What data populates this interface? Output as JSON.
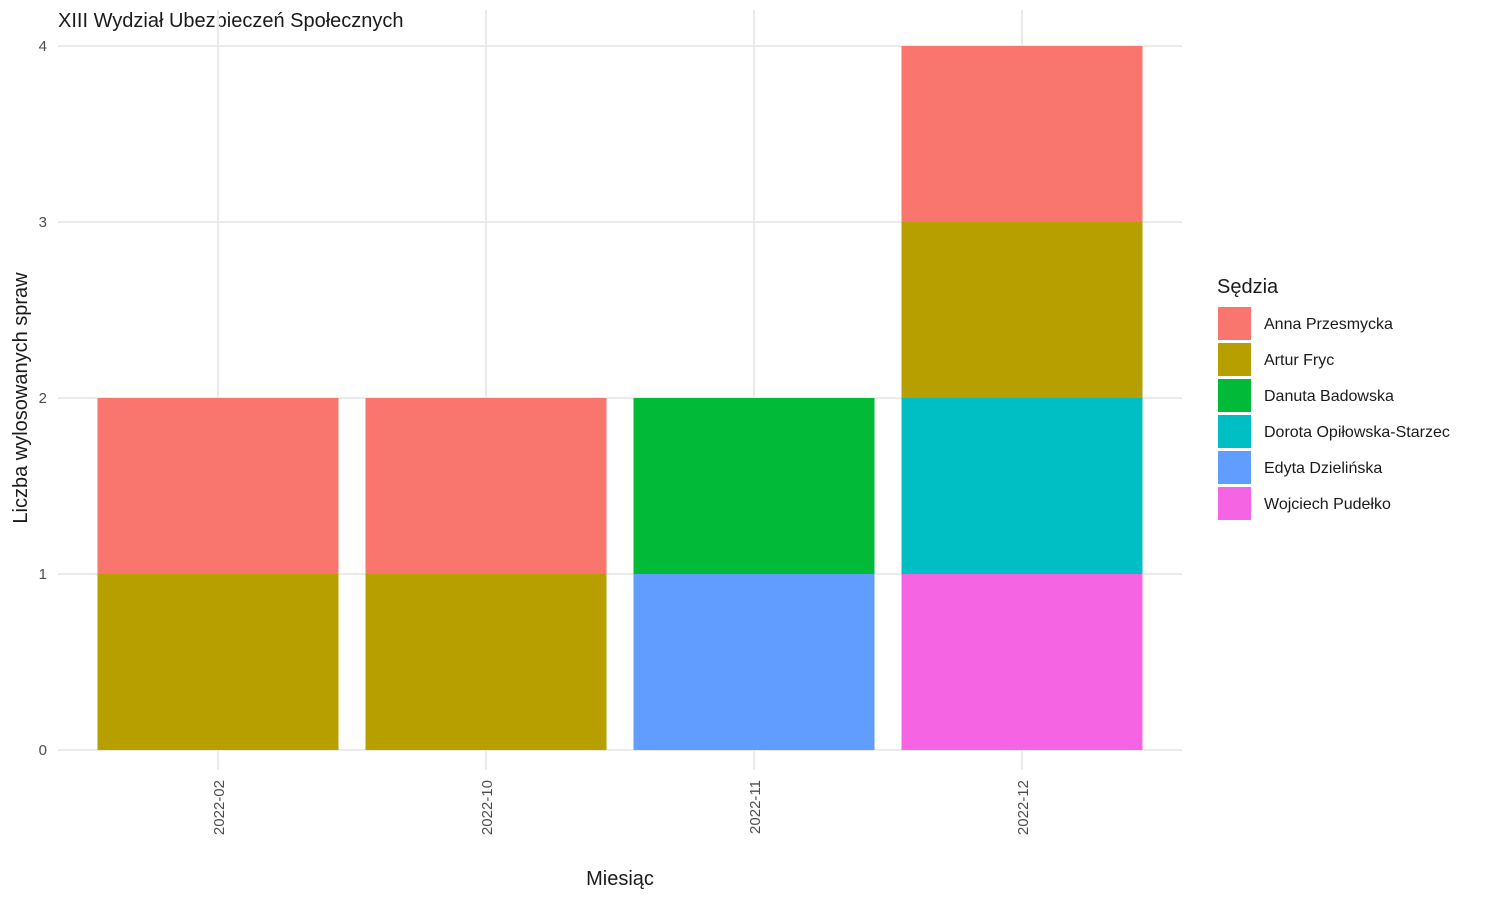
{
  "chart_data": {
    "type": "bar",
    "stacked": true,
    "title": "XIII Wydział Ubezpieczeń Społecznych",
    "xlabel": "Miesiąc",
    "ylabel": "Liczba wylosowanych spraw",
    "ylim": [
      0,
      4
    ],
    "yticks": [
      0,
      1,
      2,
      3,
      4
    ],
    "categories": [
      "2022-02",
      "2022-10",
      "2022-11",
      "2022-12"
    ],
    "legend": {
      "title": "Sędzia",
      "position": "right"
    },
    "grid": true,
    "series": [
      {
        "name": "Wojciech Pudełko",
        "color": "#F564E3",
        "values": [
          0,
          0,
          0,
          1
        ]
      },
      {
        "name": "Edyta Dzielińska",
        "color": "#619CFF",
        "values": [
          0,
          0,
          1,
          0
        ]
      },
      {
        "name": "Dorota Opiłowska-Starzec",
        "color": "#00BFC4",
        "values": [
          0,
          0,
          0,
          1
        ]
      },
      {
        "name": "Danuta Badowska",
        "color": "#00BA38",
        "values": [
          0,
          0,
          1,
          0
        ]
      },
      {
        "name": "Artur Fryc",
        "color": "#B79F00",
        "values": [
          1,
          1,
          0,
          1
        ]
      },
      {
        "name": "Anna Przesmycka",
        "color": "#F8766D",
        "values": [
          1,
          1,
          0,
          1
        ]
      }
    ],
    "legend_order": [
      "Anna Przesmycka",
      "Artur Fryc",
      "Danuta Badowska",
      "Dorota Opiłowska-Starzec",
      "Edyta Dzielińska",
      "Wojciech Pudełko"
    ]
  }
}
